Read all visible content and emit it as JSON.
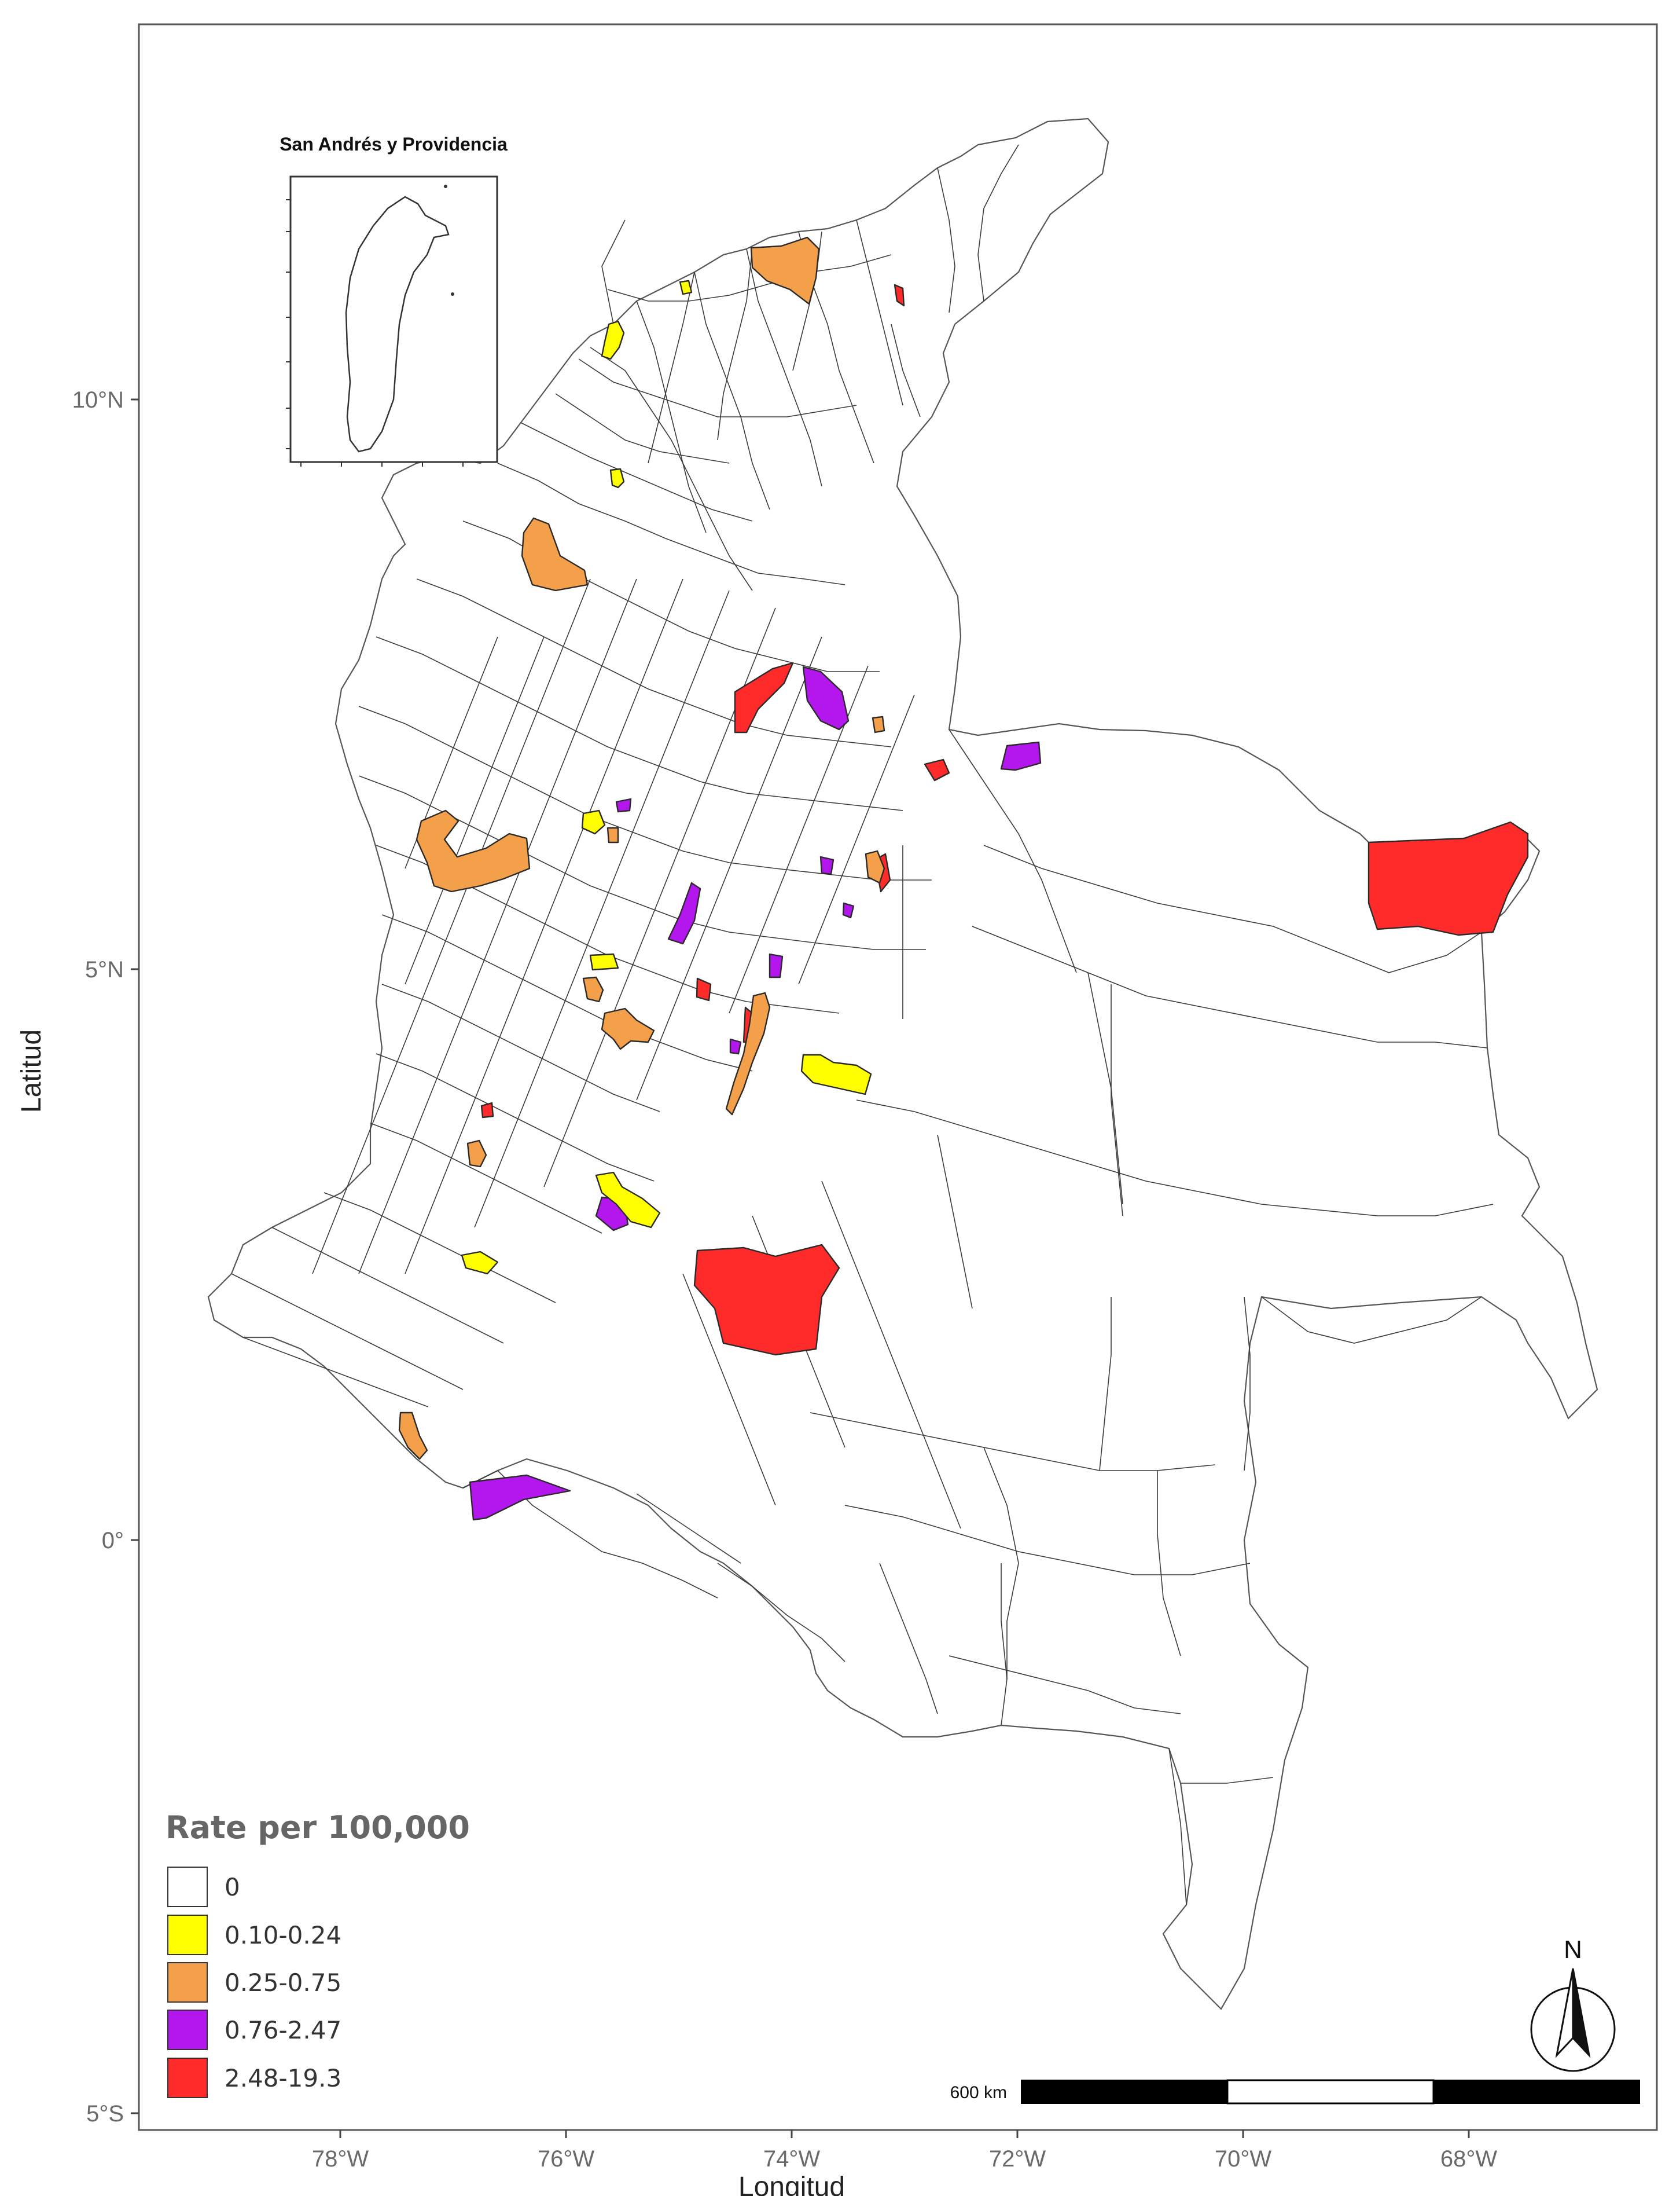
{
  "map": {
    "y_axis_title": "Latitud",
    "x_axis_title": "Longitud",
    "lat_ticks": [
      "10°N",
      "5°N",
      "0°",
      "5°S"
    ],
    "lon_ticks": [
      "78°W",
      "76°W",
      "74°W",
      "72°W",
      "70°W",
      "68°W"
    ],
    "inset_title": "San Andrés y Providencia",
    "scale_bar_label": "600 km",
    "north_label": "N"
  },
  "legend": {
    "title": "Rate per 100,000",
    "classes": [
      {
        "label": "0",
        "color": "#ffffff"
      },
      {
        "label": "0.10-0.24",
        "color": "#ffff00"
      },
      {
        "label": "0.25-0.75",
        "color": "#f4a04a"
      },
      {
        "label": "0.76-2.47",
        "color": "#b317ee"
      },
      {
        "label": "2.48-19.3",
        "color": "#ff2a2a"
      }
    ]
  },
  "colors": {
    "zero": "#ffffff",
    "low": "#ffff00",
    "mid": "#f4a04a",
    "high": "#b317ee",
    "top": "#ff2a2a",
    "outline": "#2a2a2a"
  },
  "icons": {
    "north_arrow": "north-arrow-icon",
    "scale_bar": "scale-bar"
  }
}
